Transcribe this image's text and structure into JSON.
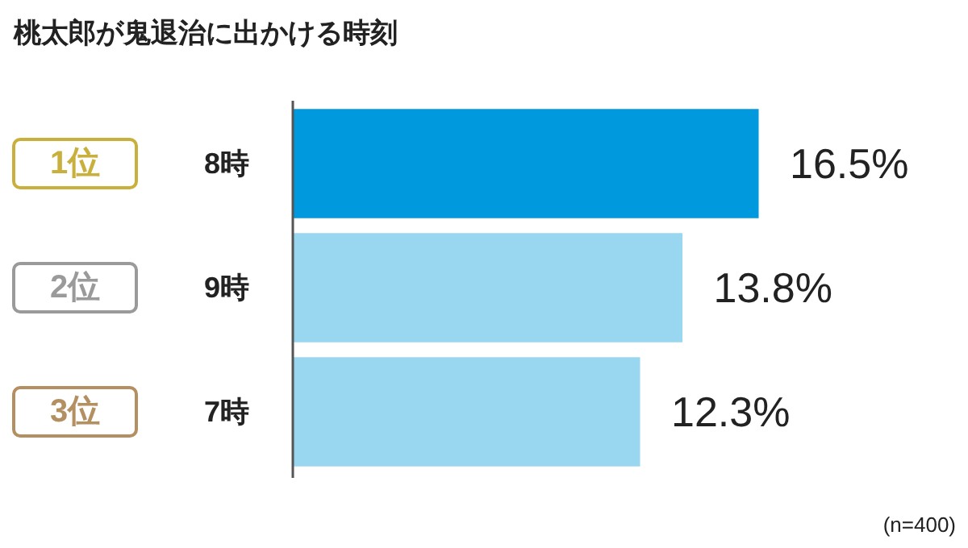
{
  "chart_data": {
    "type": "bar",
    "orientation": "horizontal",
    "title": "桃太郎が鬼退治に出かける時刻",
    "categories": [
      "8時",
      "9時",
      "7時"
    ],
    "values": [
      16.5,
      13.8,
      12.3
    ],
    "colors": [
      "#0099dd",
      "#99d6f0",
      "#99d6f0"
    ],
    "value_labels": [
      "16.5%",
      "13.8%",
      "12.3%"
    ],
    "annotations": [
      "1位",
      "2位",
      "3位",
      "(n=400)"
    ]
  }
}
